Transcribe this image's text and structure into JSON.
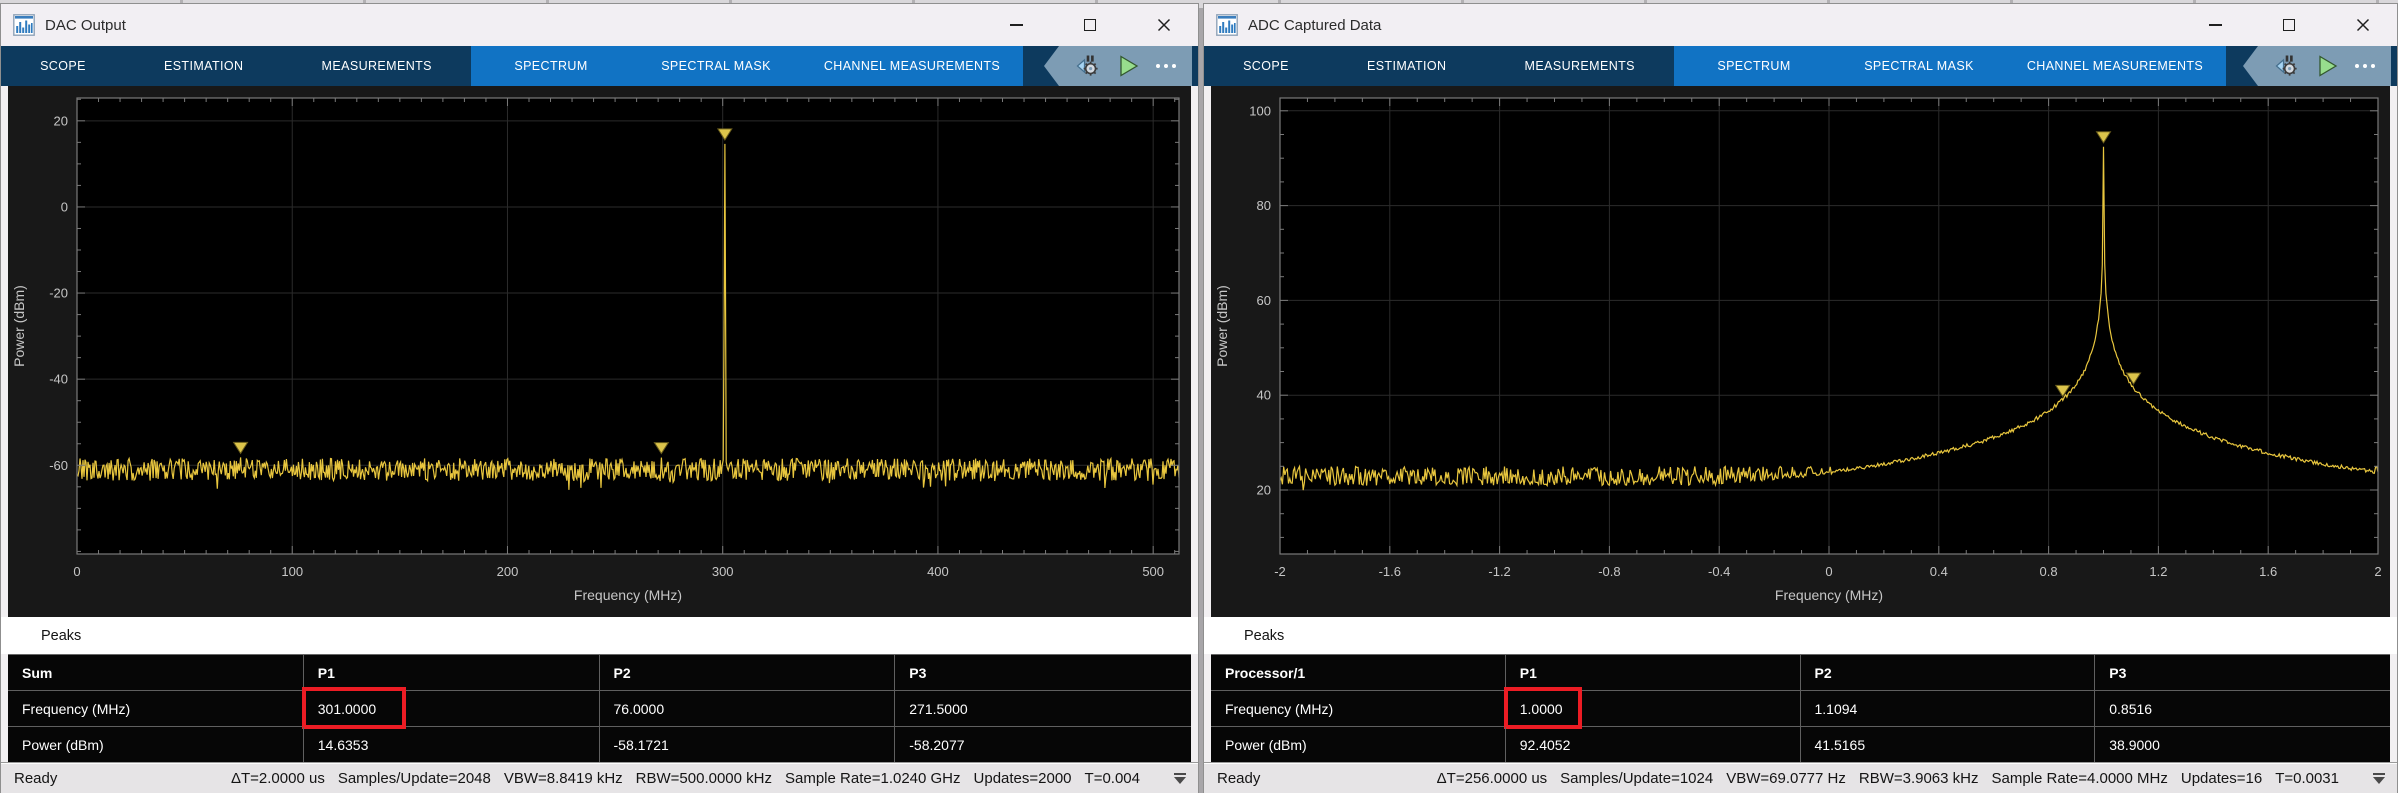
{
  "colors": {
    "accent_dark_blue": "#0d3a5e",
    "accent_blue": "#1173c4",
    "banner_steel": "#7d9cb4",
    "trace_yellow": "#e8c63e",
    "marker_fill": "#dcc44b",
    "marker_stroke": "#6a5d1c",
    "highlight_red": "#ec1c24",
    "plot_bg": "#000000",
    "plot_border": "#7a7a7a",
    "grid": "#2b2b2b",
    "tick_text": "#c6c6c6"
  },
  "toolbar": {
    "tabs_dark": [
      "SCOPE",
      "ESTIMATION",
      "MEASUREMENTS"
    ],
    "tabs_blue": [
      "SPECTRUM",
      "SPECTRAL MASK",
      "CHANNEL MEASUREMENTS"
    ]
  },
  "windows": {
    "left": {
      "title": "DAC Output",
      "peaks_label": "Peaks",
      "table": {
        "columns": [
          "Sum",
          "P1",
          "P2",
          "P3"
        ],
        "rows": [
          {
            "label": "Frequency (MHz)",
            "p1": "301.0000",
            "p2": "76.0000",
            "p3": "271.5000"
          },
          {
            "label": "Power (dBm)",
            "p1": "14.6353",
            "p2": "-58.1721",
            "p3": "-58.2077"
          }
        ]
      },
      "status": {
        "ready": "Ready",
        "metrics": [
          "ΔT=2.0000 us",
          "Samples/Update=2048",
          "VBW=8.8419 kHz",
          "RBW=500.0000 kHz",
          "Sample Rate=1.0240 GHz",
          "Updates=2000",
          "T=0.004"
        ]
      }
    },
    "right": {
      "title": "ADC Captured Data",
      "peaks_label": "Peaks",
      "table": {
        "columns": [
          "Processor/1",
          "P1",
          "P2",
          "P3"
        ],
        "rows": [
          {
            "label": "Frequency (MHz)",
            "p1": "1.0000",
            "p2": "1.1094",
            "p3": "0.8516"
          },
          {
            "label": "Power (dBm)",
            "p1": "92.4052",
            "p2": "41.5165",
            "p3": "38.9000"
          }
        ]
      },
      "status": {
        "ready": "Ready",
        "metrics": [
          "ΔT=256.0000 us",
          "Samples/Update=1024",
          "VBW=69.0777 Hz",
          "RBW=3.9063 kHz",
          "Sample Rate=4.0000 MHz",
          "Updates=16",
          "T=0.0031"
        ]
      }
    }
  },
  "chart_data": [
    {
      "panel": "left",
      "svg_id": "chart-left",
      "type": "line",
      "title": "",
      "xlabel": "Frequency (MHz)",
      "ylabel": "Power (dBm)",
      "xlim": [
        0,
        512
      ],
      "ylim": [
        -80.6,
        25.3
      ],
      "xticks": [
        0,
        100,
        200,
        300,
        400,
        500
      ],
      "yticks": [
        20,
        0,
        -20,
        -40,
        -60
      ],
      "x_minor": 10,
      "y_minor": 5,
      "grid": true,
      "legend": false,
      "seed": 42,
      "samples": 1100,
      "noise_floor_dbm": -61,
      "noise_jitter_db": 2.6,
      "skirt": {
        "type": "linear",
        "center_mhz": 301.0,
        "peak_db": 14.6353,
        "slope_db_per_mhz": 120
      },
      "peaks": [
        {
          "freq_mhz": 301.0,
          "power_dbm": 14.6353
        },
        {
          "freq_mhz": 76.0,
          "power_dbm": -58.1721
        },
        {
          "freq_mhz": 271.5,
          "power_dbm": -58.2077
        }
      ]
    },
    {
      "panel": "right",
      "svg_id": "chart-right",
      "type": "line",
      "title": "",
      "xlabel": "Frequency (MHz)",
      "ylabel": "Power (dBm)",
      "xlim": [
        -2,
        2
      ],
      "ylim": [
        6.5,
        102.7
      ],
      "xticks": [
        -2,
        -1.6,
        -1.2,
        -0.8,
        -0.4,
        0,
        0.4,
        0.8,
        1.2,
        1.6,
        2
      ],
      "yticks": [
        100,
        80,
        60,
        40,
        20
      ],
      "x_minor": 0.1,
      "y_minor": 5,
      "grid": true,
      "legend": false,
      "seed": 7,
      "samples": 900,
      "noise_floor_dbm": 23,
      "noise_jitter_db": 2.0,
      "skirt": {
        "type": "log",
        "center_mhz": 1.0,
        "clamp_db": 92.4052,
        "base_db": 23.7,
        "k": 18.6,
        "min_delta": 0.0002
      },
      "peaks": [
        {
          "freq_mhz": 1.0,
          "power_dbm": 92.4052
        },
        {
          "freq_mhz": 1.1094,
          "power_dbm": 41.5165
        },
        {
          "freq_mhz": 0.8516,
          "power_dbm": 38.9
        }
      ]
    }
  ]
}
